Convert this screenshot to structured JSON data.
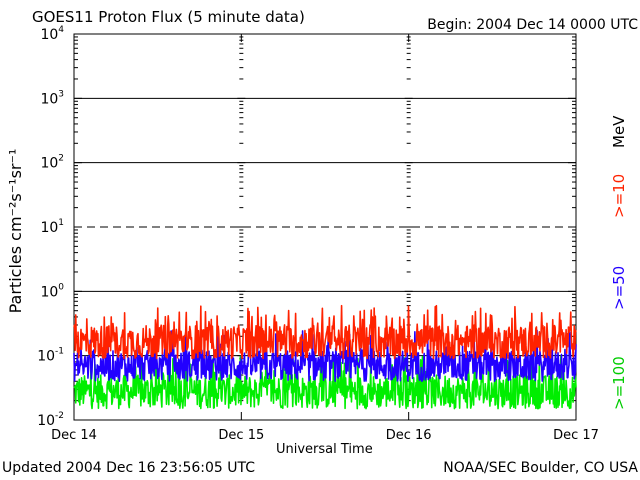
{
  "header": {
    "title": "GOES11 Proton Flux (5 minute data)",
    "begin": "Begin: 2004 Dec 14 0000 UTC"
  },
  "footer": {
    "updated": "Updated 2004 Dec 16 23:56:05 UTC",
    "credit": "NOAA/SEC Boulder, CO USA"
  },
  "chart_data": {
    "type": "line",
    "title": "GOES11 Proton Flux (5 minute data)",
    "xlabel": "Universal Time",
    "ylabel": "Particles cm⁻²s⁻¹sr⁻¹",
    "yscale": "log",
    "ylim": [
      0.01,
      10000
    ],
    "y_ticks": [
      {
        "base": "10",
        "exp": "-2"
      },
      {
        "base": "10",
        "exp": "-1"
      },
      {
        "base": "10",
        "exp": "0"
      },
      {
        "base": "10",
        "exp": "1"
      },
      {
        "base": "10",
        "exp": "2"
      },
      {
        "base": "10",
        "exp": "3"
      },
      {
        "base": "10",
        "exp": "4"
      }
    ],
    "x_ticks": [
      "Dec 14",
      "Dec 15",
      "Dec 16",
      "Dec 17"
    ],
    "xlim_days": [
      0,
      3
    ],
    "dashed_gridlines": [
      10
    ],
    "solid_gridlines": [
      0.1,
      1,
      100,
      1000
    ],
    "series": [
      {
        "name": ">=10 MeV",
        "legend": ">=10",
        "unit": "MeV",
        "color": "#ff2200",
        "typical_range": [
          0.09,
          0.3
        ],
        "spike_max": 0.6
      },
      {
        "name": ">=50 MeV",
        "legend": ">=50",
        "color": "#2200ff",
        "typical_range": [
          0.04,
          0.12
        ],
        "spike_max": 0.25
      },
      {
        "name": ">=100 MeV",
        "legend": ">=100",
        "color": "#00ee00",
        "typical_range": [
          0.015,
          0.05
        ],
        "spike_max": 0.1
      }
    ]
  }
}
